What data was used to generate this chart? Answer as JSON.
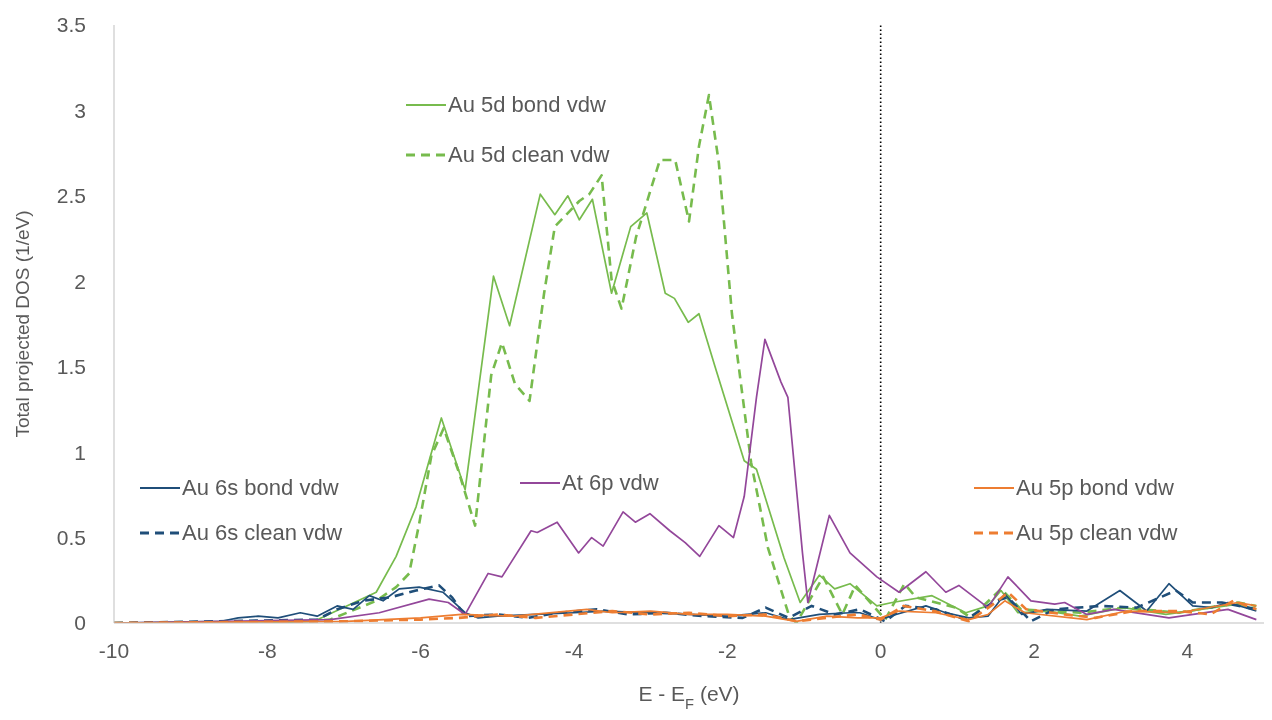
{
  "chart_data": {
    "type": "line",
    "xlabel": "E - E$_{F}$ (eV)",
    "ylabel": "Total projected DOS (1/eV)",
    "xlim": [
      -10,
      5
    ],
    "xticks": [
      -10,
      -8,
      -6,
      -4,
      -2,
      0,
      2,
      4
    ],
    "ylim": [
      0,
      3.5
    ],
    "yticks": [
      0,
      0.5,
      1,
      1.5,
      2,
      2.5,
      3,
      3.5
    ],
    "grid": false,
    "legend": "top",
    "marker": "none",
    "ref_lines": [
      {
        "axis": "x",
        "value": 0,
        "color": "#000000",
        "line_style": "dotted"
      }
    ],
    "series": [
      {
        "name": "Au 5d bond vdw",
        "color": "#77bb4d",
        "line_style": "solid",
        "x": [
          -10,
          -8,
          -7.39,
          -6.58,
          -6.32,
          -6.06,
          -5.89,
          -5.73,
          -5.42,
          -5.05,
          -4.84,
          -4.44,
          -4.25,
          -4.08,
          -3.93,
          -3.76,
          -3.51,
          -3.26,
          -3.05,
          -2.81,
          -2.69,
          -2.51,
          -2.37,
          -2.16,
          -1.78,
          -1.62,
          -1.26,
          -1.05,
          -0.8,
          -0.6,
          -0.4,
          -0.05,
          0.15,
          0.67,
          1.11,
          1.4,
          1.57,
          1.79,
          2.18,
          2.6,
          3.17,
          3.72,
          4.66,
          4.9
        ],
        "values": [
          0,
          0,
          0.01,
          0.18,
          0.39,
          0.68,
          0.95,
          1.2,
          0.78,
          2.03,
          1.74,
          2.51,
          2.39,
          2.5,
          2.36,
          2.48,
          1.93,
          2.32,
          2.4,
          1.93,
          1.9,
          1.76,
          1.81,
          1.5,
          0.95,
          0.9,
          0.38,
          0.12,
          0.28,
          0.2,
          0.23,
          0.1,
          0.12,
          0.16,
          0.06,
          0.1,
          0.19,
          0.06,
          0.07,
          0.04,
          0.09,
          0.05,
          0.11,
          0.08
        ]
      },
      {
        "name": "Au 5d clean vdw",
        "color": "#77bb4d",
        "line_style": "dashed",
        "x": [
          -10,
          -8,
          -7.18,
          -6.58,
          -6.32,
          -6.15,
          -6.02,
          -5.86,
          -5.7,
          -5.5,
          -5.29,
          -5.08,
          -4.94,
          -4.77,
          -4.58,
          -4.39,
          -4.25,
          -3.93,
          -3.8,
          -3.64,
          -3.51,
          -3.38,
          -3.19,
          -2.88,
          -2.68,
          -2.5,
          -2.37,
          -2.24,
          -2.11,
          -1.94,
          -1.69,
          -1.47,
          -1.2,
          -1.1,
          -0.75,
          -0.5,
          -0.33,
          0.06,
          0.31,
          0.46,
          0.98,
          1.18,
          1.57,
          1.83,
          2.6,
          3.17,
          3.89,
          4.66,
          4.9
        ],
        "values": [
          0,
          0,
          0.02,
          0.13,
          0.21,
          0.29,
          0.58,
          0.98,
          1.14,
          0.88,
          0.57,
          1.45,
          1.64,
          1.4,
          1.3,
          1.93,
          2.32,
          2.47,
          2.51,
          2.62,
          2.01,
          1.84,
          2.26,
          2.71,
          2.71,
          2.35,
          2.79,
          3.09,
          2.69,
          1.81,
          0.94,
          0.44,
          0.05,
          0,
          0.27,
          0.05,
          0.22,
          0.02,
          0.23,
          0.15,
          0.09,
          0.03,
          0.2,
          0.08,
          0.06,
          0.09,
          0.06,
          0.12,
          0.1
        ]
      },
      {
        "name": "Au 6s bond vdw",
        "color": "#1f4e79",
        "line_style": "solid",
        "x": [
          -10,
          -8.6,
          -8.38,
          -8.12,
          -7.86,
          -7.57,
          -7.35,
          -7.09,
          -6.88,
          -6.67,
          -6.49,
          -6.28,
          -6.02,
          -5.71,
          -5.42,
          -5.25,
          -5,
          -4.5,
          -4,
          -3.6,
          -3,
          -2.5,
          -2,
          -1.5,
          -1.2,
          -0.8,
          -0.4,
          -0.27,
          -0.01,
          0.2,
          0.59,
          0.85,
          1.15,
          1.4,
          1.62,
          1.84,
          2.17,
          2.69,
          3.12,
          3.47,
          3.76,
          4.07,
          4.32,
          4.53,
          4.9
        ],
        "values": [
          0,
          0.01,
          0.03,
          0.04,
          0.03,
          0.06,
          0.04,
          0.1,
          0.08,
          0.16,
          0.13,
          0.2,
          0.21,
          0.18,
          0.06,
          0.03,
          0.04,
          0.05,
          0.06,
          0.07,
          0.06,
          0.05,
          0.04,
          0.06,
          0.02,
          0.05,
          0.06,
          0.06,
          0.02,
          0.05,
          0.1,
          0.06,
          0.03,
          0.04,
          0.17,
          0.05,
          0.08,
          0.07,
          0.19,
          0.07,
          0.23,
          0.1,
          0.09,
          0.12,
          0.07
        ]
      },
      {
        "name": "Au 6s clean vdw",
        "color": "#1f4e79",
        "line_style": "dashed",
        "x": [
          -10,
          -7.35,
          -7.09,
          -6.75,
          -6.4,
          -6.06,
          -5.76,
          -5.59,
          -5.42,
          -5,
          -4.6,
          -4.2,
          -3.7,
          -3.3,
          -2.8,
          -2.3,
          -1.8,
          -1.5,
          -1.2,
          -0.9,
          -0.6,
          -0.27,
          0.06,
          0.32,
          0.72,
          1.11,
          1.5,
          1.66,
          1.96,
          2.27,
          2.87,
          3.34,
          3.85,
          4.07,
          4.45,
          4.9
        ],
        "values": [
          0,
          0.02,
          0.08,
          0.13,
          0.15,
          0.19,
          0.22,
          0.15,
          0.04,
          0.05,
          0.03,
          0.06,
          0.08,
          0.05,
          0.06,
          0.04,
          0.03,
          0.09,
          0.03,
          0.1,
          0.05,
          0.08,
          0.01,
          0.1,
          0.08,
          0.02,
          0.13,
          0.15,
          0.01,
          0.08,
          0.1,
          0.09,
          0.19,
          0.12,
          0.12,
          0.08
        ]
      },
      {
        "name": "At 6p vdw",
        "color": "#93479a",
        "line_style": "solid",
        "x": [
          -10,
          -7.18,
          -6.54,
          -5.89,
          -5.64,
          -5.42,
          -5.12,
          -4.94,
          -4.56,
          -4.48,
          -4.22,
          -3.94,
          -3.77,
          -3.62,
          -3.36,
          -3.2,
          -3.01,
          -2.75,
          -2.55,
          -2.36,
          -2.11,
          -1.92,
          -1.78,
          -1.62,
          -1.51,
          -1.3,
          -1.21,
          -1.02,
          -0.95,
          -0.67,
          -0.4,
          -0.05,
          0.24,
          0.59,
          0.85,
          1.02,
          1.4,
          1.66,
          1.96,
          2.27,
          2.4,
          2.69,
          3.04,
          3.76,
          4.53,
          4.9
        ],
        "values": [
          0,
          0.02,
          0.06,
          0.14,
          0.12,
          0.05,
          0.29,
          0.27,
          0.54,
          0.53,
          0.59,
          0.41,
          0.5,
          0.45,
          0.65,
          0.59,
          0.64,
          0.54,
          0.47,
          0.39,
          0.57,
          0.5,
          0.74,
          1.32,
          1.66,
          1.41,
          1.32,
          0.41,
          0.12,
          0.63,
          0.41,
          0.27,
          0.18,
          0.3,
          0.18,
          0.22,
          0.09,
          0.27,
          0.13,
          0.11,
          0.12,
          0.05,
          0.08,
          0.03,
          0.08,
          0.02
        ]
      },
      {
        "name": "Au 5p bond vdw",
        "color": "#ed7d31",
        "line_style": "solid",
        "x": [
          -10,
          -6.97,
          -6,
          -5.47,
          -4.78,
          -3.83,
          -3.5,
          -3,
          -2.5,
          -2,
          -1.5,
          -1.1,
          -0.7,
          -0.3,
          0,
          0.24,
          0.72,
          1.15,
          1.4,
          1.62,
          1.88,
          2.69,
          3.21,
          3.89,
          4.66,
          4.9
        ],
        "values": [
          0,
          0.01,
          0.03,
          0.05,
          0.04,
          0.08,
          0.06,
          0.07,
          0.05,
          0.05,
          0.04,
          0.01,
          0.04,
          0.03,
          0.03,
          0.07,
          0.06,
          0.02,
          0.05,
          0.13,
          0.06,
          0.02,
          0.07,
          0.06,
          0.12,
          0.1
        ]
      },
      {
        "name": "Au 5p clean vdw",
        "color": "#ed7d31",
        "line_style": "dashed",
        "x": [
          -10,
          -7,
          -6,
          -5.5,
          -5,
          -4.5,
          -4,
          -3.5,
          -3,
          -2.5,
          -2,
          -1.5,
          -1.1,
          -0.7,
          -0.3,
          0,
          0.3,
          0.7,
          1.15,
          1.5,
          1.66,
          1.9,
          2.4,
          2.8,
          3.3,
          3.9,
          4.3,
          4.6,
          4.9
        ],
        "values": [
          0,
          0.01,
          0.02,
          0.03,
          0.05,
          0.03,
          0.05,
          0.07,
          0.05,
          0.06,
          0.04,
          0.05,
          0.01,
          0.03,
          0.05,
          0.02,
          0.1,
          0.07,
          0.01,
          0.12,
          0.18,
          0.08,
          0.05,
          0.03,
          0.07,
          0.07,
          0.05,
          0.13,
          0.08
        ]
      }
    ]
  }
}
